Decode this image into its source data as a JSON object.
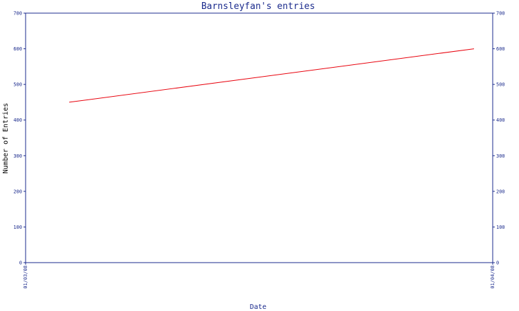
{
  "chart_data": {
    "type": "line",
    "title": "Barnsleyfan's entries",
    "xlabel": "Date",
    "ylabel": "Number of Entries",
    "x": [
      "01/03/08",
      "01/04/08"
    ],
    "xticks": [
      "01/03/08",
      "01/04/08"
    ],
    "series": [
      {
        "x": [
          "2008-03-01",
          "2008-04-01"
        ],
        "values": [
          450,
          600
        ],
        "color": "#e8000b"
      }
    ],
    "ylim": [
      0,
      700
    ],
    "yticks": [
      0,
      100,
      200,
      300,
      400,
      500,
      600,
      700
    ],
    "grid": false,
    "legend": "none",
    "colors": {
      "axis": "#1a2a8c",
      "line": "#e8000b"
    }
  }
}
